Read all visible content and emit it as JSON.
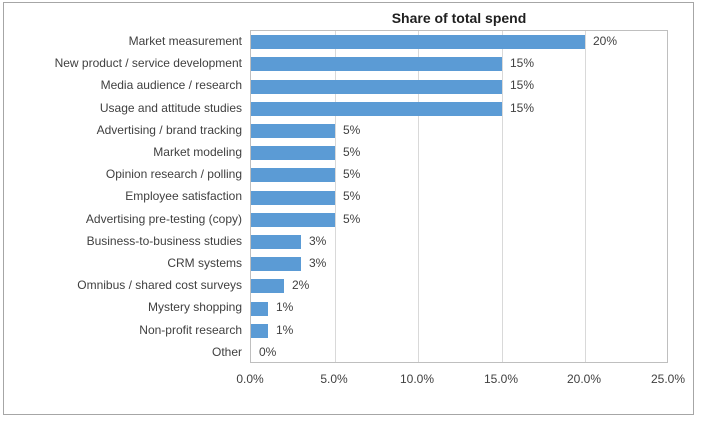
{
  "chart_data": {
    "type": "bar",
    "orientation": "horizontal",
    "title": "Share of total spend",
    "categories": [
      "Market measurement",
      "New product / service development",
      "Media audience / research",
      "Usage and attitude studies",
      "Advertising / brand tracking",
      "Market modeling",
      "Opinion research / polling",
      "Employee satisfaction",
      "Advertising pre-testing (copy)",
      "Business-to-business studies",
      "CRM systems",
      "Omnibus / shared cost surveys",
      "Mystery shopping",
      "Non-profit research",
      "Other"
    ],
    "values": [
      20,
      15,
      15,
      15,
      5,
      5,
      5,
      5,
      5,
      3,
      3,
      2,
      1,
      1,
      0
    ],
    "value_labels": [
      "20%",
      "15%",
      "15%",
      "15%",
      "5%",
      "5%",
      "5%",
      "5%",
      "5%",
      "3%",
      "3%",
      "2%",
      "1%",
      "1%",
      "0%"
    ],
    "x_tick_labels": [
      "0.0%",
      "5.0%",
      "10.0%",
      "15.0%",
      "20.0%",
      "25.0%"
    ],
    "xlim": [
      0,
      25
    ],
    "grid": true,
    "legend": "none",
    "colors": {
      "bar": "#5B9BD5",
      "gridline": "#D9D9D9",
      "plot_border": "#BFBFBF",
      "text": "#404040",
      "title": "#1F1F1F",
      "outer_border": "#A6A6A6"
    }
  }
}
